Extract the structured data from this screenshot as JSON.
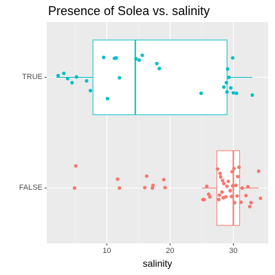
{
  "chart_data": {
    "type": "boxplot",
    "title": "Presence of Solea vs. salinity",
    "xlabel": "salinity",
    "ylabel": "",
    "x_ticks": [
      10,
      20,
      30
    ],
    "xlim": [
      0.5,
      35.5
    ],
    "categories": [
      "FALSE",
      "TRUE"
    ],
    "grid": true,
    "series": [
      {
        "category": "TRUE",
        "color": "#00BFC4",
        "box": {
          "whisker_low": 2.0,
          "q1": 7.8,
          "median": 14.5,
          "q3": 29.0,
          "whisker_high": 33.0
        },
        "points": [
          [
            2.3,
            0.04
          ],
          [
            3.2,
            0.09
          ],
          [
            3.8,
            -0.03
          ],
          [
            4.5,
            -0.12
          ],
          [
            5.2,
            0.01
          ],
          [
            6.8,
            -0.08
          ],
          [
            7.4,
            -0.3
          ],
          [
            9.5,
            0.45
          ],
          [
            10.1,
            -0.48
          ],
          [
            11.2,
            0.43
          ],
          [
            11.5,
            0.44
          ],
          [
            12.0,
            -0.01
          ],
          [
            14.6,
            0.42
          ],
          [
            15.1,
            0.39
          ],
          [
            15.6,
            0.5
          ],
          [
            17.9,
            0.31
          ],
          [
            18.3,
            0.2
          ],
          [
            24.9,
            -0.36
          ],
          [
            28.5,
            -0.22
          ],
          [
            28.9,
            -0.12
          ],
          [
            29.0,
            -0.33
          ],
          [
            29.1,
            0.19
          ],
          [
            29.3,
            0.0
          ],
          [
            29.6,
            -0.24
          ],
          [
            29.9,
            0.44
          ],
          [
            30.0,
            -0.35
          ],
          [
            30.5,
            -0.36
          ],
          [
            33.0,
            -0.4
          ]
        ]
      },
      {
        "category": "FALSE",
        "color": "#F8766D",
        "box": {
          "whisker_low": 25.0,
          "q1": 27.4,
          "median": 30.0,
          "q3": 31.0,
          "whisker_high": 34.0
        },
        "points": [
          [
            4.9,
            0.0
          ],
          [
            5.1,
            0.5
          ],
          [
            11.7,
            0.2
          ],
          [
            12.0,
            0.0
          ],
          [
            16.0,
            0.01
          ],
          [
            16.3,
            0.27
          ],
          [
            17.2,
            0.0
          ],
          [
            17.3,
            0.06
          ],
          [
            19.0,
            0.19
          ],
          [
            19.2,
            0.01
          ],
          [
            25.2,
            -0.26
          ],
          [
            25.4,
            -0.26
          ],
          [
            25.8,
            0.04
          ],
          [
            26.1,
            -0.14
          ],
          [
            26.3,
            -0.2
          ],
          [
            27.5,
            0.43
          ],
          [
            27.7,
            -0.26
          ],
          [
            27.8,
            -0.16
          ],
          [
            27.9,
            0.33
          ],
          [
            28.0,
            0.25
          ],
          [
            28.2,
            -0.09
          ],
          [
            28.3,
            0.17
          ],
          [
            28.4,
            -0.22
          ],
          [
            28.5,
            0.1
          ],
          [
            28.8,
            -0.2
          ],
          [
            29.0,
            0.04
          ],
          [
            29.2,
            0.15
          ],
          [
            29.5,
            -0.06
          ],
          [
            29.7,
            -0.19
          ],
          [
            29.8,
            0.37
          ],
          [
            29.9,
            0.05
          ],
          [
            30.1,
            0.44
          ],
          [
            30.2,
            -0.33
          ],
          [
            30.4,
            0.06
          ],
          [
            30.6,
            -0.18
          ],
          [
            30.7,
            0.26
          ],
          [
            30.9,
            0.47
          ],
          [
            31.2,
            -0.32
          ],
          [
            31.4,
            0.0
          ],
          [
            32.0,
            -0.17
          ],
          [
            32.3,
            0.03
          ],
          [
            32.6,
            -0.42
          ],
          [
            32.8,
            -0.33
          ],
          [
            34.0,
            0.38
          ],
          [
            34.3,
            -0.23
          ]
        ]
      }
    ]
  }
}
